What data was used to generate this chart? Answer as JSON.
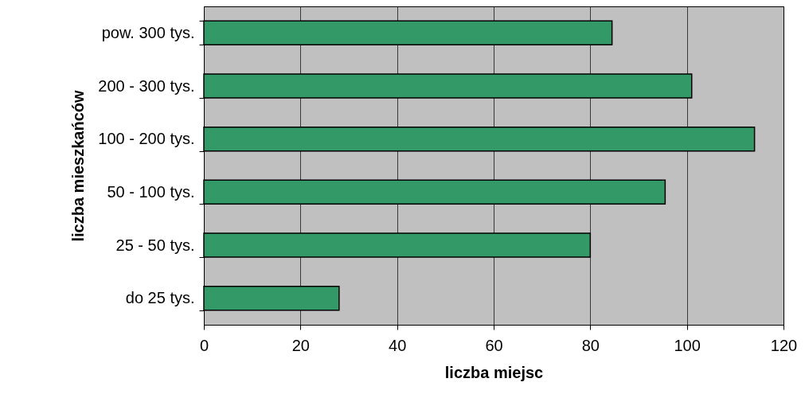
{
  "chart_data": {
    "type": "bar",
    "orientation": "horizontal",
    "xlabel": "liczba miejsc",
    "ylabel": "liczba mieszkańców",
    "categories": [
      "pow. 300 tys.",
      "200 - 300 tys.",
      "100 - 200 tys.",
      "50 - 100 tys.",
      "25 - 50 tys.",
      "do 25 tys."
    ],
    "values": [
      84.5,
      101,
      114,
      95.5,
      80,
      28
    ],
    "color": "#339966",
    "xlim": [
      0,
      120
    ],
    "xticks": [
      0,
      20,
      40,
      60,
      80,
      100,
      120
    ],
    "grid": "x"
  }
}
